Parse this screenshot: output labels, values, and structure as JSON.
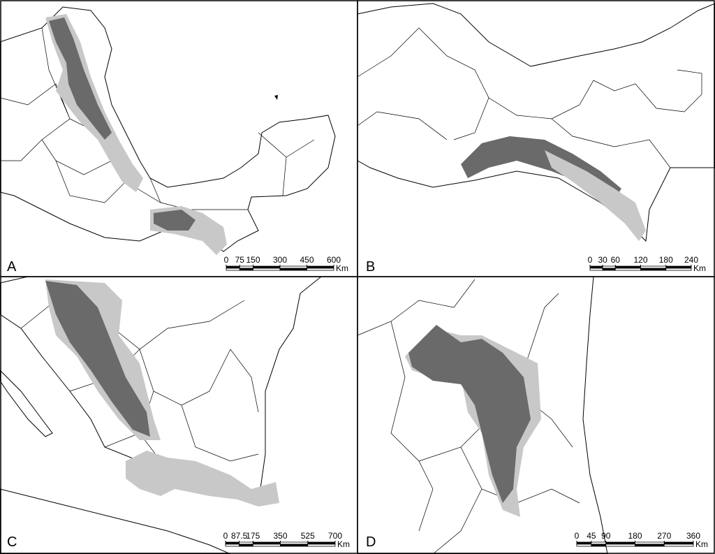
{
  "panels": [
    {
      "label": "A",
      "scale": {
        "ticks": [
          0,
          75,
          150,
          300,
          450,
          600
        ],
        "unit": "Km"
      }
    },
    {
      "label": "B",
      "scale": {
        "ticks": [
          0,
          30,
          60,
          120,
          180,
          240
        ],
        "unit": "Km"
      }
    },
    {
      "label": "C",
      "scale": {
        "ticks": [
          0,
          87.5,
          175,
          350,
          525,
          700
        ],
        "unit": "Km"
      }
    },
    {
      "label": "D",
      "scale": {
        "ticks": [
          0,
          45,
          90,
          180,
          270,
          360
        ],
        "unit": "Km"
      }
    }
  ]
}
